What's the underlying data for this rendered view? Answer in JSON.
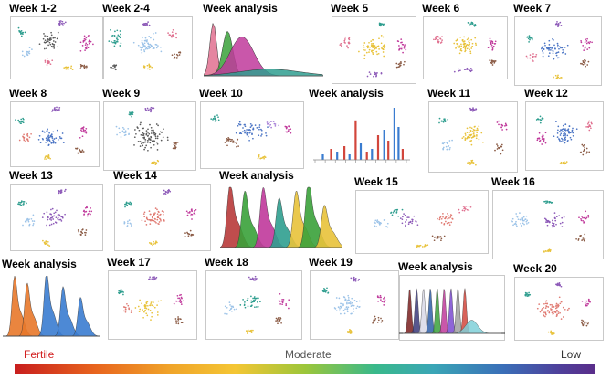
{
  "palette": {
    "teal": "#2f9e8f",
    "pink": "#e0708f",
    "gray": "#5a5a5a",
    "magenta": "#c0399b",
    "blue": "#4a74c4",
    "lightblue": "#9cc3e8",
    "yellow": "#e8c23a",
    "brown": "#8a5a44",
    "purple": "#8d5ab8",
    "salmon": "#e07a72",
    "red": "#d2463c",
    "lightpurple": "#a67fd6"
  },
  "panels": [
    {
      "title": "Week 1-2",
      "kind": "tsne"
    },
    {
      "title": "Week 2-4",
      "kind": "tsne"
    },
    {
      "title": "Week analysis",
      "kind": "density"
    },
    {
      "title": "Week 5",
      "kind": "tsne"
    },
    {
      "title": "Week 6",
      "kind": "tsne"
    },
    {
      "title": "Week 7",
      "kind": "tsne"
    },
    {
      "title": "Week 8",
      "kind": "tsne"
    },
    {
      "title": "Week 9",
      "kind": "tsne"
    },
    {
      "title": "Week 10",
      "kind": "tsne"
    },
    {
      "title": "Week analysis",
      "kind": "histogram"
    },
    {
      "title": "Week 11",
      "kind": "tsne"
    },
    {
      "title": "Week 12",
      "kind": "tsne"
    },
    {
      "title": "Week 13",
      "kind": "tsne"
    },
    {
      "title": "Week 14",
      "kind": "tsne"
    },
    {
      "title": "Week analysis",
      "kind": "ridges"
    },
    {
      "title": "Week 15",
      "kind": "tsne"
    },
    {
      "title": "Week 16",
      "kind": "tsne"
    },
    {
      "title": "Week analysis",
      "kind": "ridges-blue"
    },
    {
      "title": "Week 17",
      "kind": "tsne"
    },
    {
      "title": "Week 18",
      "kind": "tsne"
    },
    {
      "title": "Week 19",
      "kind": "tsne"
    },
    {
      "title": "Week analysis",
      "kind": "peaks"
    },
    {
      "title": "Week 20",
      "kind": "tsne"
    }
  ],
  "legend": {
    "fertile": "Fertile",
    "moderate": "Moderate",
    "low": "Low",
    "fertile_color": "#d21e1e",
    "moderate_color": "#555555",
    "low_color": "#333333"
  }
}
